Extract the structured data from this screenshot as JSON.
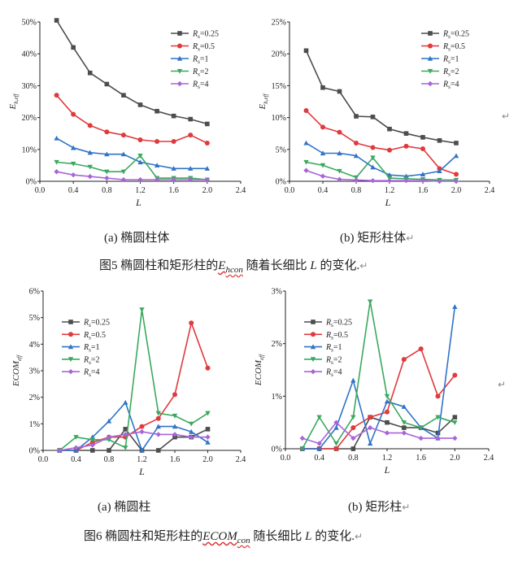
{
  "figure5": {
    "caption_prefix": "图5  椭圆柱和矩形柱的",
    "caption_var": "E",
    "caption_sub": "hcon",
    "caption_mid": "  随着长细比  ",
    "caption_L": "L",
    "caption_suffix": " 的变化.",
    "sub_a": "(a)  椭圆柱体",
    "sub_b": "(b)  矩形柱体"
  },
  "figure6": {
    "caption_prefix": "图6  椭圆柱和矩形柱的",
    "caption_var": "ECOM",
    "caption_sub": "con",
    "caption_mid": " 随长细比  ",
    "caption_L": "L",
    "caption_suffix": "  的变化.",
    "sub_a": "(a)  椭圆柱",
    "sub_b": "(b)  矩形柱"
  },
  "colors": {
    "Rs=0.25": "#4d4d4d",
    "Rs=0.5": "#e0393e",
    "Rs=1": "#2f74c8",
    "Rs=2": "#3aa95e",
    "Rs=4": "#a865d9"
  },
  "chart_data": [
    {
      "id": "fig5a",
      "type": "line",
      "xlabel": "L",
      "ylabel_main": "E",
      "ylabel_sub": "h,eff",
      "xlim": [
        0.0,
        2.4
      ],
      "ylim": [
        0,
        50
      ],
      "xticks": [
        "0.0",
        "0.4",
        "0.8",
        "1.2",
        "1.6",
        "2.0",
        "2.4"
      ],
      "yticks": [
        "0%",
        "10%",
        "20%",
        "30%",
        "40%",
        "50%"
      ],
      "legend_position": "top-right",
      "x": [
        0.2,
        0.4,
        0.6,
        0.8,
        1.0,
        1.2,
        1.4,
        1.6,
        1.8,
        2.0
      ],
      "series": [
        {
          "name": "Rs=0.25",
          "label": "R",
          "sub": "s",
          "eq": "=0.25",
          "marker": "square",
          "values": [
            50.5,
            42,
            34,
            30.5,
            27,
            24,
            22,
            20.5,
            19.5,
            18
          ]
        },
        {
          "name": "Rs=0.5",
          "label": "R",
          "sub": "s",
          "eq": "=0.5",
          "marker": "circle",
          "values": [
            27,
            21,
            17.5,
            15.5,
            14.5,
            13,
            12.5,
            12.5,
            14.5,
            12
          ]
        },
        {
          "name": "Rs=1",
          "label": "R",
          "sub": "s",
          "eq": "=1",
          "marker": "triangle",
          "values": [
            13.5,
            10.5,
            9,
            8.5,
            8.5,
            6,
            5,
            4,
            4,
            4
          ]
        },
        {
          "name": "Rs=2",
          "label": "R",
          "sub": "s",
          "eq": "=2",
          "marker": "tri-down",
          "values": [
            6,
            5.5,
            4.5,
            3,
            3,
            8,
            1,
            1,
            1,
            0.5
          ]
        },
        {
          "name": "Rs=4",
          "label": "R",
          "sub": "s",
          "eq": "=4",
          "marker": "diamond",
          "values": [
            3,
            2,
            1.5,
            1,
            0.5,
            0.5,
            0.5,
            0.5,
            0.5,
            0.5
          ]
        }
      ]
    },
    {
      "id": "fig5b",
      "type": "line",
      "xlabel": "L",
      "ylabel_main": "E",
      "ylabel_sub": "h,eff",
      "xlim": [
        0.0,
        2.4
      ],
      "ylim": [
        0,
        25
      ],
      "xticks": [
        "0.0",
        "0.4",
        "0.8",
        "1.2",
        "1.6",
        "2.0",
        "2.4"
      ],
      "yticks": [
        "0%",
        "5%",
        "10%",
        "15%",
        "20%",
        "25%"
      ],
      "legend_position": "top-right",
      "x": [
        0.2,
        0.4,
        0.6,
        0.8,
        1.0,
        1.2,
        1.4,
        1.6,
        1.8,
        2.0
      ],
      "series": [
        {
          "name": "Rs=0.25",
          "label": "R",
          "sub": "s",
          "eq": "=0.25",
          "marker": "square",
          "values": [
            20.5,
            14.7,
            14.1,
            10.2,
            10.1,
            8.2,
            7.5,
            6.9,
            6.4,
            6.0
          ]
        },
        {
          "name": "Rs=0.5",
          "label": "R",
          "sub": "s",
          "eq": "=0.5",
          "marker": "circle",
          "values": [
            11.1,
            8.5,
            7.7,
            6.0,
            5.3,
            4.9,
            5.5,
            5.1,
            2.0,
            1.1
          ]
        },
        {
          "name": "Rs=1",
          "label": "R",
          "sub": "s",
          "eq": "=1",
          "marker": "triangle",
          "values": [
            6.0,
            4.4,
            4.4,
            4.0,
            2.2,
            1.0,
            0.8,
            1.1,
            1.6,
            4.0
          ]
        },
        {
          "name": "Rs=2",
          "label": "R",
          "sub": "s",
          "eq": "=2",
          "marker": "tri-down",
          "values": [
            3.0,
            2.5,
            1.6,
            0.6,
            3.7,
            0.5,
            0.4,
            0.3,
            0.2,
            0.2
          ]
        },
        {
          "name": "Rs=4",
          "label": "R",
          "sub": "s",
          "eq": "=4",
          "marker": "diamond",
          "values": [
            1.7,
            0.8,
            0.3,
            0.2,
            0.1,
            0.1,
            0.1,
            0.1,
            0.0,
            0.0
          ]
        }
      ]
    },
    {
      "id": "fig6a",
      "type": "line",
      "xlabel": "L",
      "ylabel_main": "ECOM",
      "ylabel_sub": "eff",
      "xlim": [
        0.0,
        2.4
      ],
      "ylim": [
        0,
        6
      ],
      "xticks": [
        "0.0",
        "0.4",
        "0.8",
        "1.2",
        "1.6",
        "2.0",
        "2.4"
      ],
      "yticks": [
        "0%",
        "1%",
        "2%",
        "3%",
        "4%",
        "5%",
        "6%"
      ],
      "legend_position": "top-left",
      "x": [
        0.2,
        0.4,
        0.6,
        0.8,
        1.0,
        1.2,
        1.4,
        1.6,
        1.8,
        2.0
      ],
      "series": [
        {
          "name": "Rs=0.25",
          "label": "R",
          "sub": "s",
          "eq": "=0.25",
          "marker": "square",
          "values": [
            0.0,
            0.0,
            0.0,
            0.0,
            0.8,
            0.0,
            0.0,
            0.5,
            0.5,
            0.8
          ]
        },
        {
          "name": "Rs=0.5",
          "label": "R",
          "sub": "s",
          "eq": "=0.5",
          "marker": "circle",
          "values": [
            0.0,
            0.0,
            0.3,
            0.5,
            0.5,
            0.9,
            1.2,
            2.1,
            4.8,
            3.1
          ]
        },
        {
          "name": "Rs=1",
          "label": "R",
          "sub": "s",
          "eq": "=1",
          "marker": "triangle",
          "values": [
            0.0,
            0.0,
            0.5,
            1.1,
            1.8,
            0.0,
            0.9,
            0.9,
            0.7,
            0.3
          ]
        },
        {
          "name": "Rs=2",
          "label": "R",
          "sub": "s",
          "eq": "=2",
          "marker": "tri-down",
          "values": [
            0.0,
            0.5,
            0.4,
            0.4,
            0.1,
            5.3,
            1.4,
            1.3,
            1.0,
            1.4
          ]
        },
        {
          "name": "Rs=4",
          "label": "R",
          "sub": "s",
          "eq": "=4",
          "marker": "diamond",
          "values": [
            0.0,
            0.1,
            0.2,
            0.5,
            0.6,
            0.7,
            0.6,
            0.6,
            0.5,
            0.5
          ]
        }
      ]
    },
    {
      "id": "fig6b",
      "type": "line",
      "xlabel": "L",
      "ylabel_main": "ECOM",
      "ylabel_sub": "eff",
      "xlim": [
        0.0,
        2.4
      ],
      "ylim": [
        0,
        3
      ],
      "xticks": [
        "0.0",
        "0.4",
        "0.8",
        "1.2",
        "1.6",
        "2.0",
        "2.4"
      ],
      "yticks": [
        "0%",
        "1%",
        "2%",
        "3%"
      ],
      "legend_position": "top-left",
      "x": [
        0.2,
        0.4,
        0.6,
        0.8,
        1.0,
        1.2,
        1.4,
        1.6,
        1.8,
        2.0
      ],
      "series": [
        {
          "name": "Rs=0.25",
          "label": "R",
          "sub": "s",
          "eq": "=0.25",
          "marker": "square",
          "values": [
            0.0,
            0.0,
            0.0,
            0.0,
            0.6,
            0.5,
            0.4,
            0.4,
            0.3,
            0.6
          ]
        },
        {
          "name": "Rs=0.5",
          "label": "R",
          "sub": "s",
          "eq": "=0.5",
          "marker": "circle",
          "values": [
            0.0,
            0.0,
            0.0,
            0.4,
            0.6,
            0.7,
            1.7,
            1.9,
            1.0,
            1.4
          ]
        },
        {
          "name": "Rs=1",
          "label": "R",
          "sub": "s",
          "eq": "=1",
          "marker": "triangle",
          "values": [
            0.0,
            0.0,
            0.4,
            1.3,
            0.1,
            0.9,
            0.8,
            0.4,
            0.2,
            2.7
          ]
        },
        {
          "name": "Rs=2",
          "label": "R",
          "sub": "s",
          "eq": "=2",
          "marker": "tri-down",
          "values": [
            0.0,
            0.6,
            0.1,
            0.6,
            2.8,
            1.0,
            0.5,
            0.4,
            0.6,
            0.5
          ]
        },
        {
          "name": "Rs=4",
          "label": "R",
          "sub": "s",
          "eq": "=4",
          "marker": "diamond",
          "values": [
            0.2,
            0.1,
            0.5,
            0.2,
            0.4,
            0.3,
            0.3,
            0.2,
            0.2,
            0.2
          ]
        }
      ]
    }
  ]
}
